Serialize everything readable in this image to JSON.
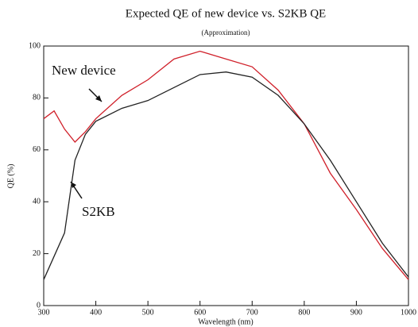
{
  "chart_data": {
    "type": "line",
    "title": "Expected QE of new device vs. S2KB QE",
    "subtitle": "(Approximation)",
    "x_label": "Wavelength (nm)",
    "y_label": "QE (%)",
    "xlim": [
      300,
      1000
    ],
    "ylim": [
      0,
      100
    ],
    "xticks": [
      300,
      400,
      500,
      600,
      700,
      800,
      900,
      1000
    ],
    "yticks": [
      0,
      20,
      40,
      60,
      80,
      100
    ],
    "series": [
      {
        "name": "New device",
        "color": "#d0202a",
        "x": [
          300,
          320,
          340,
          360,
          380,
          400,
          450,
          500,
          550,
          600,
          650,
          700,
          750,
          800,
          850,
          900,
          950,
          1000
        ],
        "values": [
          72,
          75,
          68,
          63,
          67,
          72,
          81,
          87,
          95,
          98,
          95,
          92,
          83,
          70,
          51,
          37,
          22,
          10
        ]
      },
      {
        "name": "S2KB",
        "color": "#222222",
        "x": [
          300,
          340,
          360,
          380,
          400,
          450,
          500,
          550,
          600,
          650,
          700,
          750,
          800,
          850,
          900,
          950,
          1000
        ],
        "values": [
          10,
          28,
          56,
          66,
          71,
          76,
          79,
          84,
          89,
          90,
          88,
          81,
          70,
          56,
          40,
          24,
          11
        ]
      }
    ]
  }
}
